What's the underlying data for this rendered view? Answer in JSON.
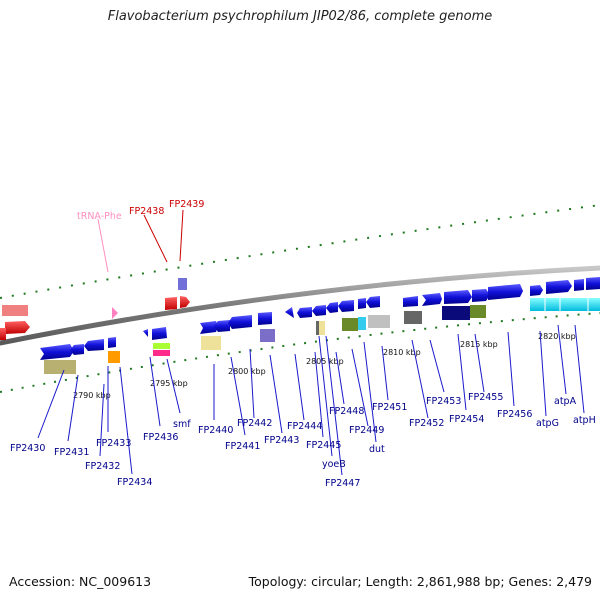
{
  "title": "Flavobacterium psychrophilum JIP02/86, complete genome",
  "footer": {
    "accession": "Accession: NC_009613",
    "summary": "Topology: circular; Length: 2,861,988 bp; Genes: 2,479"
  },
  "scale": {
    "ticks": [
      "2790 kbp",
      "2795 kbp",
      "2800 kbp",
      "2805 kbp",
      "2810 kbp",
      "2815 kbp",
      "2820 kbp"
    ]
  },
  "colors": {
    "backbone": "#8c8c8c",
    "gene_forward": "#1a1acc",
    "gene_reverse": "#0000ee",
    "rna_gene": "#e8001a",
    "trna": "#ff80c0",
    "tick_green": "#1f7a1f",
    "label_blue": "#00008b",
    "label_red": "#cc0000",
    "label_pink": "#ff8fc0"
  },
  "genes": {
    "top_labels": [
      {
        "name": "tRNA-Phe",
        "kind": "trna"
      },
      {
        "name": "FP2438",
        "kind": "red"
      },
      {
        "name": "FP2439",
        "kind": "red"
      }
    ],
    "bottom_labels": [
      "FP2430",
      "FP2431",
      "FP2432",
      "FP2433",
      "FP2434",
      "FP2436",
      "smf",
      "FP2440",
      "FP2441",
      "FP2442",
      "FP2443",
      "FP2444",
      "FP2445",
      "yoeB",
      "FP2447",
      "FP2448",
      "FP2449",
      "dut",
      "FP2451",
      "FP2452",
      "FP2453",
      "FP2454",
      "FP2455",
      "FP2456",
      "atpG",
      "atpA",
      "atpH"
    ]
  }
}
